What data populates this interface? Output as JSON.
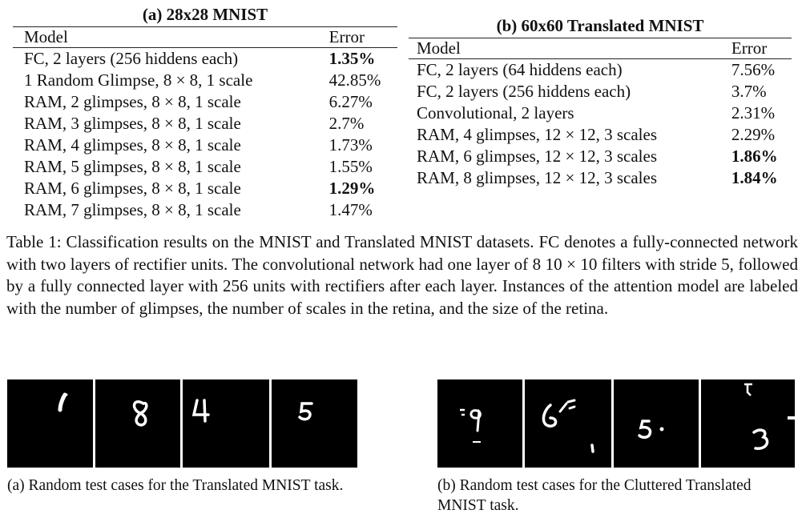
{
  "table_a": {
    "title": "(a) 28x28 MNIST",
    "headers": [
      "Model",
      "Error"
    ],
    "rows": [
      {
        "model": "FC, 2 layers (256 hiddens each)",
        "error": "1.35%",
        "bold": true
      },
      {
        "model": "1 Random Glimpse, 8 × 8, 1 scale",
        "error": "42.85%",
        "bold": false
      },
      {
        "model": "RAM, 2 glimpses, 8 × 8, 1 scale",
        "error": "6.27%",
        "bold": false
      },
      {
        "model": "RAM, 3 glimpses, 8 × 8, 1 scale",
        "error": "2.7%",
        "bold": false
      },
      {
        "model": "RAM, 4 glimpses, 8 × 8, 1 scale",
        "error": "1.73%",
        "bold": false
      },
      {
        "model": "RAM, 5 glimpses, 8 × 8, 1 scale",
        "error": "1.55%",
        "bold": false
      },
      {
        "model": "RAM, 6 glimpses, 8 × 8, 1 scale",
        "error": "1.29%",
        "bold": true
      },
      {
        "model": "RAM, 7 glimpses, 8 × 8, 1 scale",
        "error": "1.47%",
        "bold": false
      }
    ]
  },
  "table_b": {
    "title": "(b) 60x60 Translated MNIST",
    "headers": [
      "Model",
      "Error"
    ],
    "rows": [
      {
        "model": "FC, 2 layers (64 hiddens each)",
        "error": "7.56%",
        "bold": false
      },
      {
        "model": "FC, 2 layers (256 hiddens each)",
        "error": "3.7%",
        "bold": false
      },
      {
        "model": "Convolutional, 2 layers",
        "error": "2.31%",
        "bold": false
      },
      {
        "model": "RAM, 4 glimpses, 12 × 12, 3 scales",
        "error": "2.29%",
        "bold": false
      },
      {
        "model": "RAM, 6 glimpses, 12 × 12, 3 scales",
        "error": "1.86%",
        "bold": true
      },
      {
        "model": "RAM, 8 glimpses, 12 × 12, 3 scales",
        "error": "1.84%",
        "bold": true
      }
    ]
  },
  "caption": "Table 1: Classification results on the MNIST and Translated MNIST datasets. FC denotes a fully-connected network with two layers of rectifier units. The convolutional network had one layer of 8 10 × 10 filters with stride 5, followed by a fully connected layer with 256 units with rectifiers after each layer. Instances of the attention model are labeled with the number of glimpses, the number of scales in the retina, and the size of the retina.",
  "figure_a": {
    "caption": "(a) Random test cases for the Translated MNIST task.",
    "digits": [
      "1",
      "8",
      "4",
      "5"
    ]
  },
  "figure_b": {
    "caption": "(b) Random test cases for the Cluttered Translated MNIST task.",
    "digits": [
      "9",
      "6",
      "5",
      "3"
    ]
  },
  "colors": {
    "panel_background": "#000000",
    "digit": "#ffffff"
  }
}
